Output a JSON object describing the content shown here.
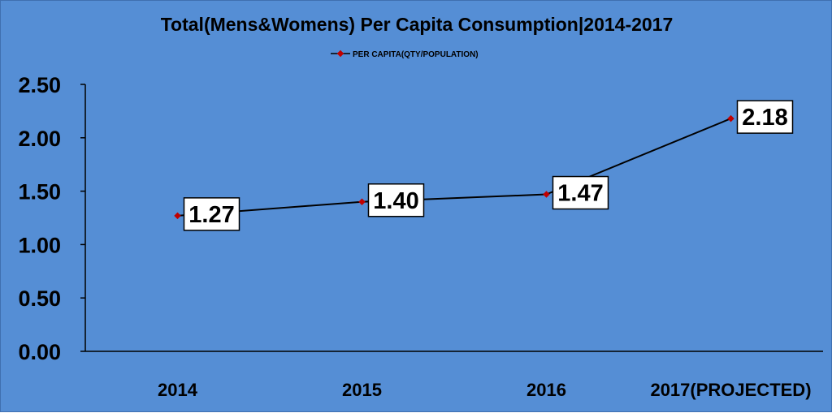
{
  "chart_data": {
    "type": "line",
    "title": "Total(Mens&Womens) Per Capita Consumption|2014-2017",
    "xlabel": "",
    "ylabel": "",
    "categories": [
      "2014",
      "2015",
      "2016",
      "2017(PROJECTED)"
    ],
    "yticks": [
      "0.00",
      "0.50",
      "1.00",
      "1.50",
      "2.00",
      "2.50"
    ],
    "ylim": [
      0,
      2.5
    ],
    "grid": false,
    "legend_position": "top",
    "series": [
      {
        "name": "PER CAPITA(QTY/POPULATION)",
        "values": [
          1.27,
          1.4,
          1.47,
          2.18
        ],
        "data_labels": [
          "1.27",
          "1.40",
          "1.47",
          "2.18"
        ],
        "line_color": "#000000",
        "marker_color": "#c00000"
      }
    ],
    "background_color": "#558ed5",
    "label_box_color": "#ffffff"
  }
}
